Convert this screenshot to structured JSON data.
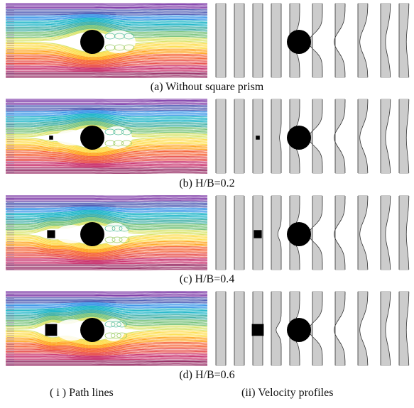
{
  "rows": [
    {
      "caption": "(a)  Without square prism",
      "square": 0.0
    },
    {
      "caption": "(b)  H/B=0.2",
      "square": 0.2
    },
    {
      "caption": "(c)  H/B=0.4",
      "square": 0.4
    },
    {
      "caption": "(d)  H/B=0.6",
      "square": 0.6
    }
  ],
  "columns": {
    "left": "( i )  Path lines",
    "right": "(ii)  Velocity profiles"
  },
  "colors": {
    "obstacle": "#000000",
    "profile_line": "#333333",
    "palette": [
      "#6a1b9a",
      "#3949ab",
      "#1e88e5",
      "#00acc1",
      "#26a69a",
      "#66bb6a",
      "#d4e157",
      "#fdd835",
      "#ff9800",
      "#f4511e",
      "#e53935",
      "#c2185b",
      "#880e4f"
    ]
  }
}
